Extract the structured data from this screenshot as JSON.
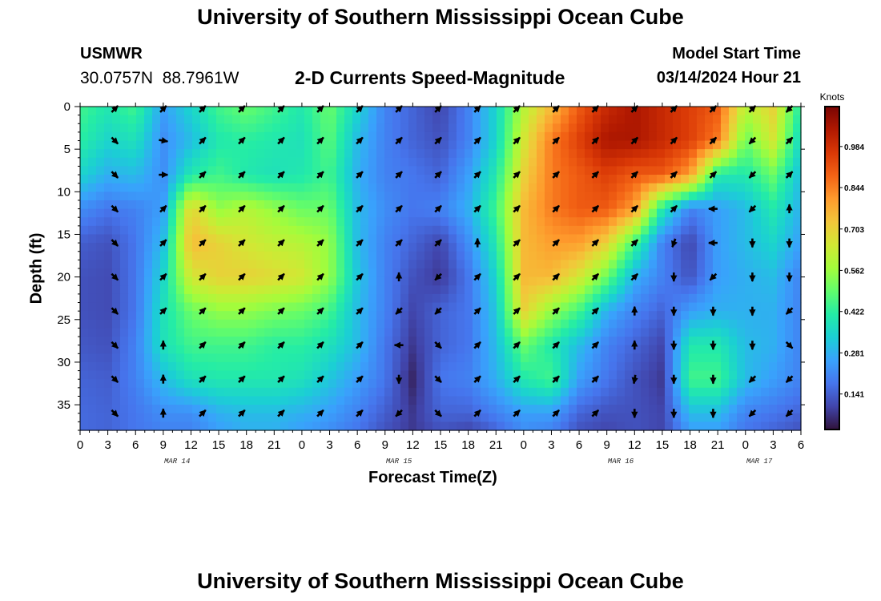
{
  "page": {
    "title_top": "University of Southern Mississippi Ocean Cube",
    "title_bottom": "University of Southern Mississippi Ocean Cube",
    "station": "USMWR",
    "coords": "30.0757N  88.7961W",
    "subtitle": "2-D Currents Speed-Magnitude",
    "model_start_label": "Model Start Time",
    "model_start_value": "03/14/2024 Hour 21"
  },
  "chart_data": {
    "type": "heatmap",
    "title": "2-D Currents Speed-Magnitude",
    "xlabel": "Forecast Time(Z)",
    "ylabel": "Depth (ft)",
    "x_tick_labels": [
      "0",
      "3",
      "6",
      "9",
      "12",
      "15",
      "18",
      "21",
      "0",
      "3",
      "6",
      "9",
      "12",
      "15",
      "18",
      "21",
      "0",
      "3",
      "6",
      "9",
      "12",
      "15",
      "18",
      "21",
      "0",
      "3",
      "6"
    ],
    "x_range_hours": [
      0,
      78
    ],
    "date_labels": [
      {
        "label": "MAR 14",
        "hour": 10.5
      },
      {
        "label": "MAR 15",
        "hour": 34.5
      },
      {
        "label": "MAR 16",
        "hour": 58.5
      },
      {
        "label": "MAR 17",
        "hour": 73.5
      }
    ],
    "y_ticks": [
      0,
      5,
      10,
      15,
      20,
      25,
      30,
      35
    ],
    "y_range": [
      0,
      38
    ],
    "y_inverted": true,
    "colorbar": {
      "unit": "Knots",
      "ticks": [
        0.984,
        0.844,
        0.703,
        0.562,
        0.422,
        0.281,
        0.141
      ],
      "range": [
        0.02,
        1.12
      ],
      "colors": [
        "#30123b",
        "#4145ab",
        "#4675ed",
        "#39a2fc",
        "#1bcfd4",
        "#24eca6",
        "#61fc6c",
        "#a4fc3b",
        "#d1e834",
        "#f3c63a",
        "#fe9b2d",
        "#f36315",
        "#d93806",
        "#b11901",
        "#7a0403"
      ]
    },
    "speed_grid": {
      "hours": [
        0,
        3,
        6,
        9,
        12,
        15,
        18,
        21,
        24,
        27,
        30,
        33,
        36,
        39,
        42,
        45,
        48,
        51,
        54,
        57,
        60,
        63,
        66,
        69,
        72,
        75,
        78
      ],
      "depths": [
        0,
        4,
        8,
        12,
        16,
        20,
        24,
        28,
        32,
        36,
        38
      ],
      "rows": [
        [
          0.45,
          0.4,
          0.45,
          0.25,
          0.35,
          0.45,
          0.5,
          0.45,
          0.4,
          0.5,
          0.35,
          0.2,
          0.15,
          0.1,
          0.2,
          0.35,
          0.6,
          0.75,
          0.9,
          1.0,
          1.05,
          1.0,
          0.95,
          0.9,
          0.6,
          0.7,
          0.4
        ],
        [
          0.42,
          0.35,
          0.38,
          0.22,
          0.3,
          0.4,
          0.42,
          0.4,
          0.38,
          0.48,
          0.3,
          0.2,
          0.15,
          0.12,
          0.2,
          0.35,
          0.65,
          0.85,
          0.95,
          1.05,
          1.05,
          1.0,
          0.95,
          0.85,
          0.5,
          0.65,
          0.35
        ],
        [
          0.35,
          0.28,
          0.3,
          0.22,
          0.4,
          0.45,
          0.4,
          0.38,
          0.4,
          0.45,
          0.28,
          0.2,
          0.18,
          0.15,
          0.25,
          0.4,
          0.7,
          0.85,
          0.9,
          0.95,
          0.9,
          0.9,
          0.8,
          0.4,
          0.4,
          0.5,
          0.3
        ],
        [
          0.22,
          0.18,
          0.2,
          0.25,
          0.7,
          0.55,
          0.6,
          0.55,
          0.5,
          0.5,
          0.3,
          0.22,
          0.18,
          0.2,
          0.28,
          0.45,
          0.75,
          0.85,
          0.9,
          0.9,
          0.8,
          0.4,
          0.2,
          0.25,
          0.3,
          0.4,
          0.28
        ],
        [
          0.14,
          0.12,
          0.18,
          0.3,
          0.75,
          0.7,
          0.65,
          0.62,
          0.6,
          0.55,
          0.3,
          0.2,
          0.15,
          0.1,
          0.22,
          0.4,
          0.75,
          0.8,
          0.8,
          0.7,
          0.45,
          0.2,
          0.1,
          0.25,
          0.3,
          0.35,
          0.25
        ],
        [
          0.12,
          0.11,
          0.18,
          0.35,
          0.65,
          0.7,
          0.7,
          0.68,
          0.65,
          0.55,
          0.32,
          0.2,
          0.12,
          0.08,
          0.18,
          0.35,
          0.75,
          0.75,
          0.65,
          0.5,
          0.28,
          0.2,
          0.12,
          0.25,
          0.28,
          0.3,
          0.2
        ],
        [
          0.12,
          0.11,
          0.18,
          0.38,
          0.5,
          0.55,
          0.55,
          0.52,
          0.5,
          0.45,
          0.3,
          0.2,
          0.1,
          0.15,
          0.18,
          0.32,
          0.7,
          0.55,
          0.45,
          0.28,
          0.2,
          0.15,
          0.25,
          0.28,
          0.28,
          0.28,
          0.2
        ],
        [
          0.13,
          0.12,
          0.2,
          0.38,
          0.45,
          0.45,
          0.45,
          0.42,
          0.42,
          0.38,
          0.3,
          0.18,
          0.08,
          0.15,
          0.18,
          0.3,
          0.5,
          0.4,
          0.3,
          0.2,
          0.15,
          0.1,
          0.4,
          0.4,
          0.3,
          0.28,
          0.2
        ],
        [
          0.15,
          0.14,
          0.2,
          0.3,
          0.38,
          0.4,
          0.4,
          0.4,
          0.38,
          0.32,
          0.25,
          0.18,
          0.05,
          0.18,
          0.2,
          0.28,
          0.4,
          0.45,
          0.25,
          0.18,
          0.12,
          0.08,
          0.45,
          0.45,
          0.3,
          0.25,
          0.2
        ],
        [
          0.16,
          0.15,
          0.18,
          0.22,
          0.22,
          0.28,
          0.3,
          0.3,
          0.28,
          0.25,
          0.2,
          0.14,
          0.08,
          0.15,
          0.15,
          0.2,
          0.25,
          0.25,
          0.15,
          0.12,
          0.12,
          0.1,
          0.3,
          0.3,
          0.2,
          0.18,
          0.15
        ],
        [
          0.16,
          0.15,
          0.18,
          0.2,
          0.2,
          0.25,
          0.28,
          0.28,
          0.25,
          0.22,
          0.18,
          0.12,
          0.08,
          0.12,
          0.1,
          0.15,
          0.22,
          0.2,
          0.12,
          0.1,
          0.12,
          0.1,
          0.25,
          0.25,
          0.18,
          0.15,
          0.12
        ]
      ]
    },
    "vectors": {
      "hours": [
        3.75,
        9.0,
        13.25,
        17.5,
        21.75,
        26.0,
        30.25,
        34.5,
        38.75,
        43.0,
        47.25,
        51.5,
        55.75,
        60.0,
        64.25,
        68.5,
        72.75,
        76.75
      ],
      "depths": [
        0,
        4,
        8,
        12,
        16,
        20,
        24,
        28,
        32,
        36
      ],
      "angles_deg": [
        [
          45,
          45,
          45,
          45,
          45,
          45,
          45,
          45,
          45,
          45,
          45,
          45,
          45,
          45,
          45,
          45,
          45,
          -135
        ],
        [
          -45,
          -10,
          45,
          45,
          45,
          45,
          45,
          45,
          45,
          45,
          45,
          45,
          45,
          45,
          45,
          45,
          -135,
          45
        ],
        [
          -45,
          0,
          45,
          45,
          45,
          45,
          45,
          45,
          45,
          45,
          45,
          45,
          45,
          45,
          45,
          45,
          -135,
          45
        ],
        [
          -45,
          45,
          45,
          45,
          45,
          45,
          45,
          45,
          45,
          45,
          45,
          45,
          45,
          45,
          45,
          180,
          -135,
          90
        ],
        [
          -45,
          45,
          45,
          45,
          45,
          45,
          45,
          45,
          45,
          90,
          45,
          45,
          45,
          45,
          -110,
          180,
          -90,
          -90
        ],
        [
          -45,
          45,
          45,
          45,
          45,
          45,
          45,
          90,
          -135,
          45,
          45,
          45,
          45,
          45,
          -90,
          -135,
          -90,
          -90
        ],
        [
          -45,
          45,
          45,
          45,
          45,
          45,
          45,
          -135,
          -135,
          45,
          45,
          45,
          45,
          90,
          -90,
          -90,
          -90,
          -135
        ],
        [
          -45,
          90,
          45,
          45,
          45,
          45,
          45,
          180,
          -45,
          45,
          45,
          45,
          45,
          90,
          -90,
          -90,
          -90,
          -45
        ],
        [
          -45,
          90,
          45,
          45,
          45,
          45,
          45,
          -90,
          -45,
          45,
          45,
          45,
          45,
          -100,
          -90,
          -90,
          -135,
          -135
        ],
        [
          -45,
          90,
          45,
          45,
          45,
          45,
          45,
          -135,
          -45,
          45,
          45,
          45,
          45,
          -90,
          -90,
          -90,
          -135,
          -135
        ]
      ]
    }
  }
}
